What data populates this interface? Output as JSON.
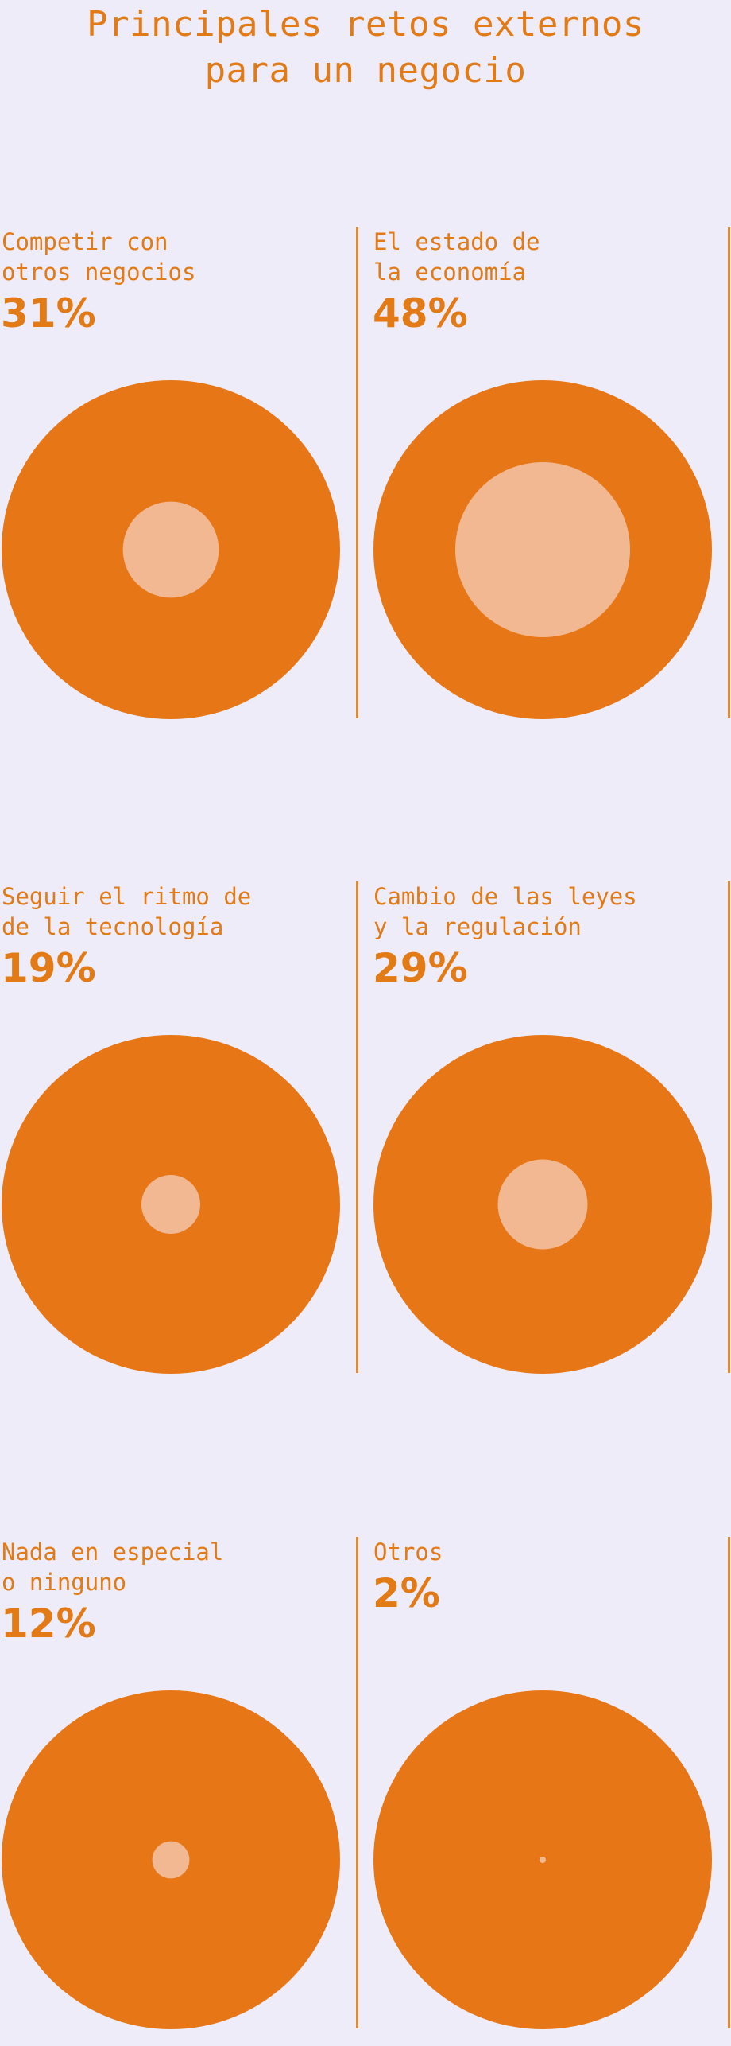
{
  "title_lines": [
    "Principales retos externos",
    "para un negocio"
  ],
  "colors": {
    "accent": "#e67616",
    "inner": "#f1b892",
    "text": "#e27a15",
    "background": "#eeecf9"
  },
  "chart_data": {
    "type": "proportional-circles",
    "title": "Principales retos externos para un negocio",
    "unit": "%",
    "categories": [
      "Competir con otros negocios",
      "El estado de la economía",
      "Seguir el ritmo de de la tecnología",
      "Cambio de las leyes y la regulación",
      "Nada en especial o ninguno",
      "Otros"
    ],
    "values": [
      31,
      48,
      19,
      29,
      12,
      2
    ]
  },
  "panels": [
    {
      "label_lines": [
        "Competir con",
        "otros negocios"
      ],
      "value": 31,
      "value_text": "31%"
    },
    {
      "label_lines": [
        "El estado de",
        "la economía"
      ],
      "value": 48,
      "value_text": "48%"
    },
    {
      "label_lines": [
        "Seguir el ritmo de",
        "de la tecnología"
      ],
      "value": 19,
      "value_text": "19%"
    },
    {
      "label_lines": [
        "Cambio de las leyes",
        "y la regulación"
      ],
      "value": 29,
      "value_text": "29%"
    },
    {
      "label_lines": [
        "Nada en especial",
        "o ninguno"
      ],
      "value": 12,
      "value_text": "12%"
    },
    {
      "label_lines": [
        "Otros"
      ],
      "value": 2,
      "value_text": "2%"
    }
  ]
}
